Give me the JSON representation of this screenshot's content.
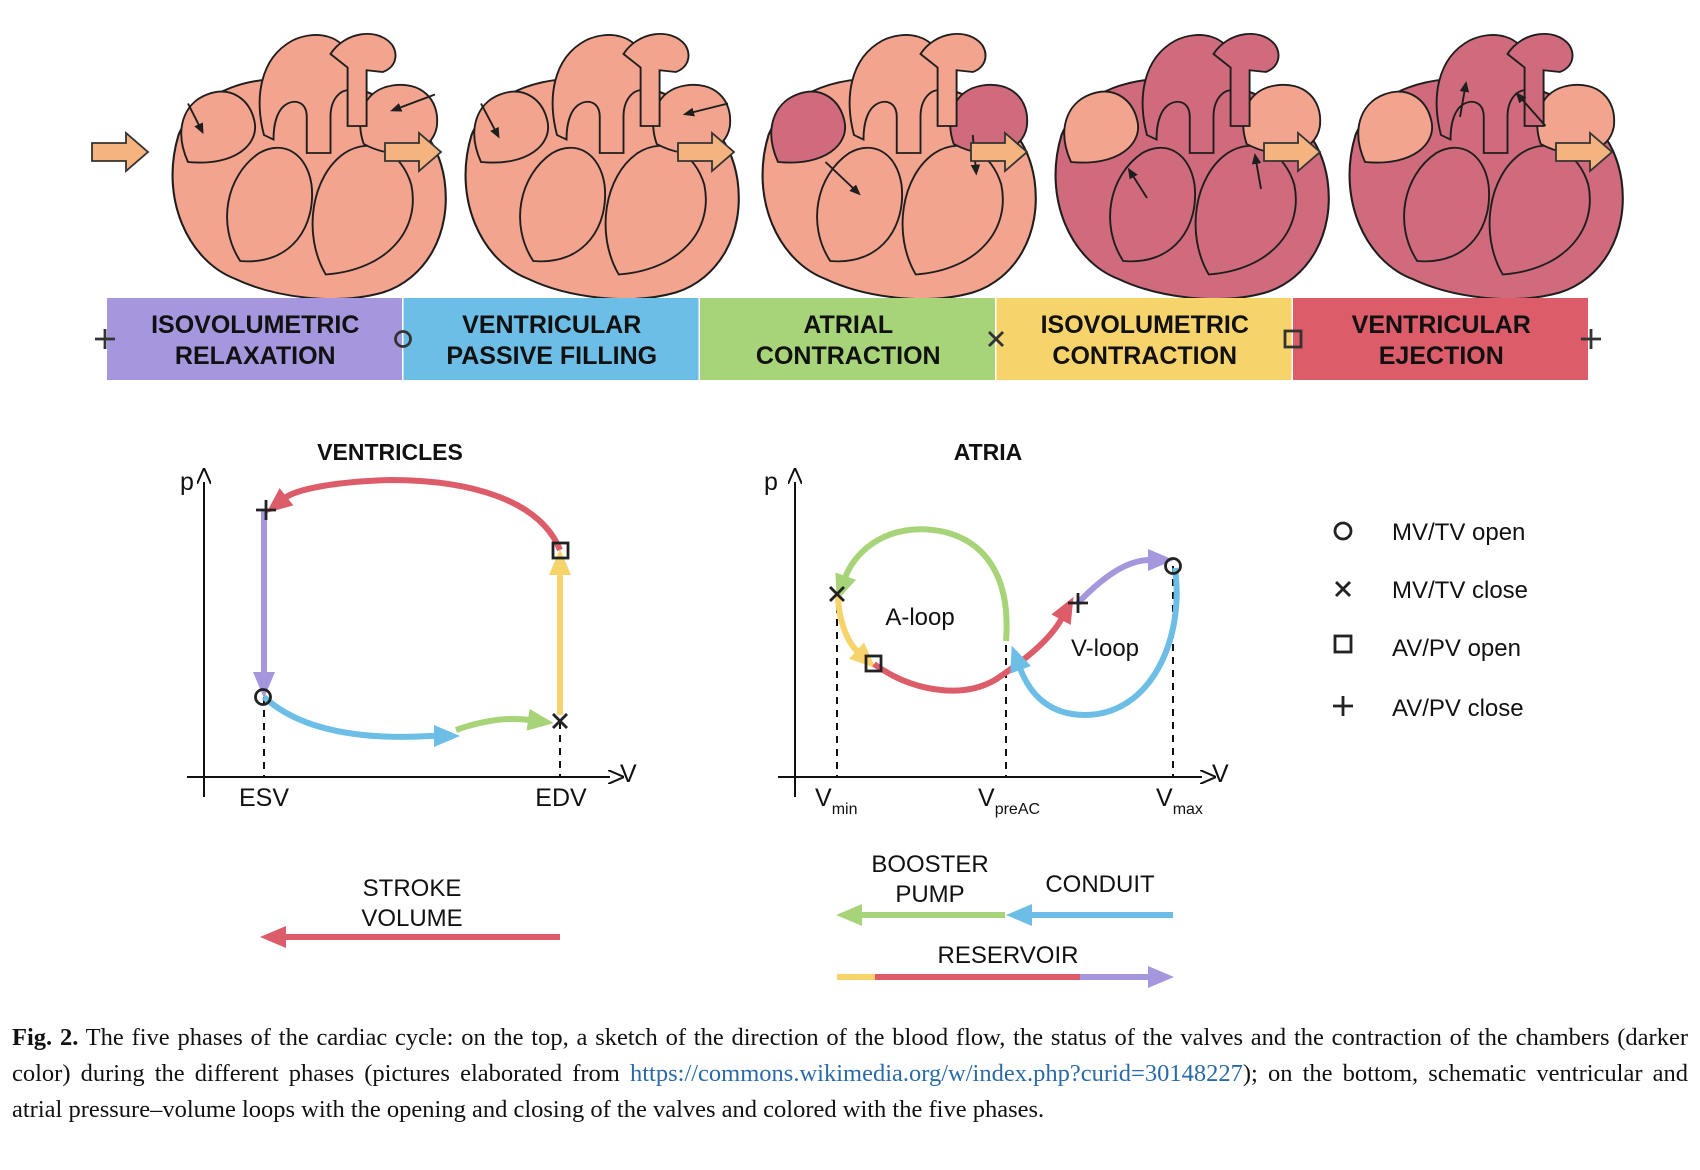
{
  "phases": [
    {
      "line1": "ISOVOLUMETRIC",
      "line2": "RELAXATION",
      "color": "#a696dd"
    },
    {
      "line1": "VENTRICULAR",
      "line2": "PASSIVE FILLING",
      "color": "#6cbee6"
    },
    {
      "line1": "ATRIAL",
      "line2": "CONTRACTION",
      "color": "#a7d479"
    },
    {
      "line1": "ISOVOLUMETRIC",
      "line2": "CONTRACTION",
      "color": "#f7d36c"
    },
    {
      "line1": "VENTRICULAR",
      "line2": "EJECTION",
      "color": "#dc5d69"
    }
  ],
  "heart_colors": {
    "relaxed": "#f2a48f",
    "contracted": "#cf6b7c",
    "outline": "#1e1e1e",
    "arrow_fill": "#f5b37f"
  },
  "ventricles": {
    "title": "VENTRICLES",
    "p_label": "p",
    "v_label": "V",
    "esv": "ESV",
    "edv": "EDV",
    "stroke_line1": "STROKE",
    "stroke_line2": "VOLUME"
  },
  "atria": {
    "title": "ATRIA",
    "p_label": "p",
    "v_label": "V",
    "vmin": "V",
    "vmin_sub": "min",
    "vpreac": "V",
    "vpreac_sub": "preAC",
    "vmax": "V",
    "vmax_sub": "max",
    "aloop": "A-loop",
    "vloop": "V-loop",
    "booster_line1": "BOOSTER",
    "booster_line2": "PUMP",
    "conduit": "CONDUIT",
    "reservoir": "RESERVOIR"
  },
  "legend": [
    {
      "symbol": "circle-icon",
      "label": "MV/TV open"
    },
    {
      "symbol": "cross-x-icon",
      "label": "MV/TV close"
    },
    {
      "symbol": "square-icon",
      "label": "AV/PV open"
    },
    {
      "symbol": "plus-icon",
      "label": "AV/PV close"
    }
  ],
  "caption": {
    "fig": "Fig. 2.",
    "text1": " The five phases of the cardiac cycle: on the top, a sketch of the direction of the blood flow, the status of the valves and the contraction of the chambers (darker color) during the different phases (pictures elaborated from ",
    "link": "https://commons.wikimedia.org/w/index.php?curid=30148227",
    "text2": "); on the bottom, schematic ventricular and atrial pressure–volume loops with the opening and closing of the valves and colored with the five phases."
  }
}
